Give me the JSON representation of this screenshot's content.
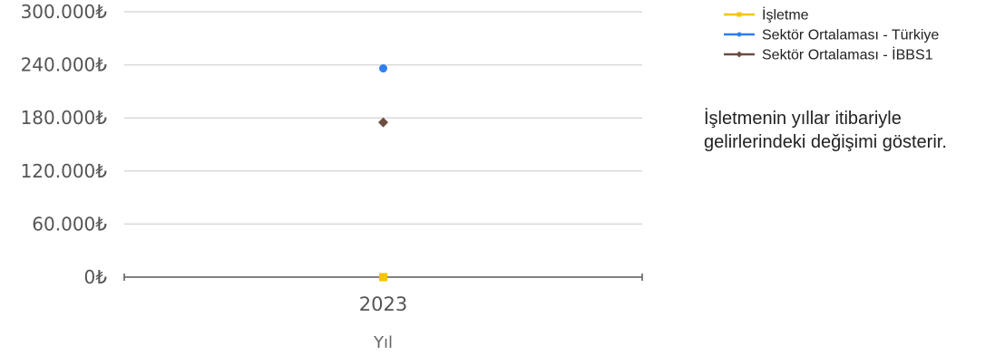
{
  "chart_data": {
    "type": "line",
    "categories": [
      "2023"
    ],
    "xlabel": "Yıl",
    "ylabel": "",
    "ylim": [
      0,
      300000
    ],
    "yticks": [
      0,
      60000,
      120000,
      180000,
      240000,
      300000
    ],
    "ytick_labels": [
      "0₺",
      "60.000₺",
      "120.000₺",
      "180.000₺",
      "240.000₺",
      "300.000₺"
    ],
    "grid": true,
    "legend_position": "top-right",
    "series": [
      {
        "name": "İşletme",
        "values": [
          0
        ],
        "color": "#f7c400",
        "marker": "square"
      },
      {
        "name": "Sektör Ortalaması - Türkiye",
        "values": [
          236000
        ],
        "color": "#2f80ed",
        "marker": "circle"
      },
      {
        "name": "Sektör Ortalaması - İBBS1",
        "values": [
          175000
        ],
        "color": "#6d4c41",
        "marker": "diamond"
      }
    ]
  },
  "description": "İşletmenin yıllar itibariyle gelirlerindeki değişimi gösterir."
}
